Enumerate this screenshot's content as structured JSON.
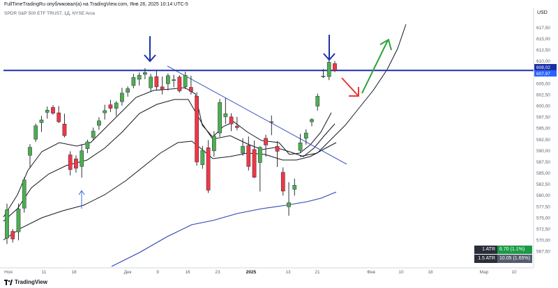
{
  "header": {
    "published_line": "FullTimeTradingRu опубликовал(а) на TradingView.com, Янв 26, 2025 10:14 UTC-5",
    "symbol_line": "SPDR S&P 500 ETF TRUST, 1Д, NYSE Arca",
    "currency": "USD"
  },
  "footer": {
    "brand": "TradingView"
  },
  "atr": {
    "row1_label": "1 ATR",
    "row1_value": "6.70 (1.1%)",
    "row2_label": "1.5 ATR",
    "row2_value": "10.05 (1.65%)"
  },
  "price_axis": {
    "ticks": [
      "617,50",
      "615,00",
      "612,50",
      "610,00",
      "607,50",
      "605,00",
      "602,50",
      "600,00",
      "597,50",
      "595,00",
      "592,50",
      "590,00",
      "587,50",
      "585,00",
      "582,50",
      "580,00",
      "577,50",
      "575,00",
      "572,50",
      "570,00",
      "567,50"
    ],
    "last_price_label": "608,02",
    "level_label": "607,97"
  },
  "time_axis": {
    "labels": [
      "Ноя",
      "11",
      "18",
      "Дек",
      "9",
      "16",
      "23",
      "2025",
      "13",
      "21",
      "Фев",
      "10",
      "18",
      "Мар",
      "10"
    ]
  },
  "colors": {
    "up": "#4caf50",
    "down": "#f23645",
    "level": "#1c2fa8",
    "trendline": "#3a56c8",
    "ma_slow": "#2b3fb3",
    "ma": "#131722",
    "arrow_blue": "#1c2fa8",
    "arrow_green": "#2ea33a",
    "arrow_red": "#e53935"
  },
  "chart_data": {
    "type": "candlestick",
    "series_ohlc": [
      [
        570.5,
        578.2,
        569.2,
        576.8
      ],
      [
        572.0,
        572.5,
        569.5,
        570.3
      ],
      [
        571.9,
        578.2,
        570.0,
        577.0
      ],
      [
        577.2,
        584.1,
        576.2,
        583.5
      ],
      [
        589.0,
        591.5,
        586.1,
        590.8
      ],
      [
        592.6,
        596.1,
        592.0,
        595.6
      ],
      [
        596.3,
        597.8,
        594.2,
        596.9
      ],
      [
        598.6,
        599.9,
        597.2,
        599.1
      ],
      [
        599.7,
        600.2,
        598.1,
        598.4
      ],
      [
        598.5,
        600.0,
        596.2,
        596.5
      ],
      [
        596.0,
        598.3,
        593.0,
        593.4
      ],
      [
        589.1,
        589.9,
        584.5,
        585.8
      ],
      [
        588.2,
        589.0,
        585.1,
        586.1
      ],
      [
        586.5,
        591.5,
        584.0,
        590.0
      ],
      [
        590.5,
        592.5,
        589.5,
        592.0
      ],
      [
        593.0,
        595.2,
        592.3,
        594.4
      ],
      [
        595.7,
        597.5,
        594.7,
        596.7
      ],
      [
        598.5,
        600.3,
        597.0,
        599.0
      ],
      [
        600.3,
        601.4,
        598.7,
        599.5
      ],
      [
        599.5,
        601.1,
        597.8,
        600.7
      ],
      [
        601.0,
        604.1,
        600.1,
        602.9
      ],
      [
        603.1,
        604.4,
        602.1,
        603.9
      ],
      [
        604.6,
        607.2,
        604.0,
        606.4
      ],
      [
        606.0,
        607.5,
        604.6,
        606.9
      ],
      [
        607.1,
        608.5,
        606.0,
        607.5
      ],
      [
        604.1,
        607.2,
        603.3,
        606.5
      ],
      [
        606.6,
        607.9,
        603.6,
        604.3
      ],
      [
        604.3,
        606.6,
        602.6,
        603.7
      ],
      [
        605.0,
        607.3,
        603.5,
        606.8
      ],
      [
        605.7,
        607.0,
        604.2,
        605.9
      ],
      [
        606.5,
        606.9,
        603.0,
        603.4
      ],
      [
        604.3,
        607.7,
        603.8,
        606.9
      ],
      [
        604.2,
        606.8,
        602.6,
        603.3
      ],
      [
        602.2,
        603.1,
        586.7,
        587.5
      ],
      [
        586.9,
        591.1,
        586.0,
        590.1
      ],
      [
        590.7,
        592.4,
        580.6,
        581.2
      ],
      [
        590.0,
        594.4,
        588.7,
        593.3
      ],
      [
        594.0,
        601.6,
        593.1,
        600.8
      ],
      [
        597.6,
        601.8,
        596.0,
        598.3
      ],
      [
        597.6,
        598.4,
        594.4,
        596.0
      ],
      [
        595.5,
        597.6,
        594.6,
        595.2
      ],
      [
        589.5,
        592.8,
        588.9,
        591.0
      ],
      [
        591.2,
        593.2,
        585.6,
        586.5
      ],
      [
        590.3,
        592.3,
        583.9,
        584.1
      ],
      [
        587.4,
        591.0,
        580.9,
        590.8
      ],
      [
        592.8,
        593.6,
        588.7,
        591.3
      ],
      [
        596.5,
        597.9,
        593.5,
        596.4
      ],
      [
        591.0,
        592.2,
        586.4,
        589.9
      ],
      [
        585.2,
        586.3,
        580.0,
        581.0
      ],
      [
        577.5,
        583.0,
        575.5,
        578.4
      ],
      [
        581.4,
        583.8,
        580.0,
        582.3
      ],
      [
        590.1,
        593.8,
        589.7,
        591.8
      ],
      [
        592.8,
        594.8,
        591.4,
        594.0
      ],
      [
        596.5,
        597.3,
        595.5,
        597.0
      ],
      [
        600.0,
        602.8,
        599.0,
        602.2
      ],
      [
        606.7,
        608.3,
        606.3,
        606.7
      ],
      [
        606.6,
        610.3,
        605.8,
        609.8
      ],
      [
        609.5,
        610.1,
        607.6,
        608.0
      ]
    ],
    "horizontal_level": 607.97,
    "x_axis_labels": [
      "Ноя",
      "11",
      "18",
      "Дек",
      "9",
      "16",
      "23",
      "2025",
      "13",
      "21",
      "Фев",
      "10",
      "18",
      "Мар",
      "10"
    ],
    "y_range": [
      566.3,
      620.5
    ]
  }
}
